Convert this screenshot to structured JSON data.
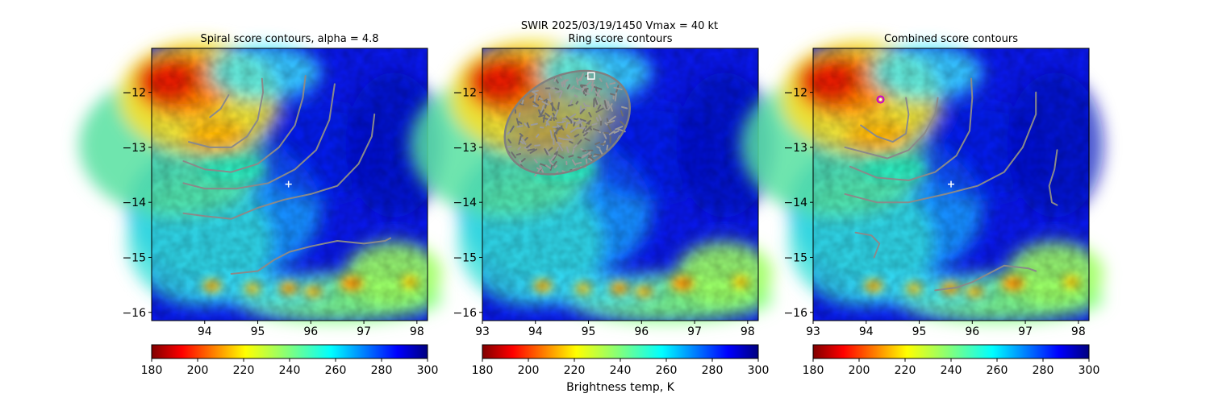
{
  "suptitle": {
    "line1": "SWIR  2025/03/19/1450    Vmax = 40 kt"
  },
  "chart_data": [
    {
      "type": "heatmap",
      "title": "Spiral score contours, alpha =  4.8",
      "xlim": [
        93.0,
        98.2
      ],
      "ylim": [
        -16.15,
        -11.2
      ],
      "xticks": [
        94,
        95,
        96,
        97,
        98
      ],
      "yticks": [
        -12,
        -13,
        -14,
        -15,
        -16
      ],
      "xtick_labels": [
        "94",
        "95",
        "96",
        "97",
        "98"
      ],
      "ytick_labels": [
        "−12",
        "−13",
        "−14",
        "−15",
        "−16"
      ],
      "colorbar": {
        "cmap": "jet_r",
        "range": [
          180,
          300
        ],
        "ticks": [
          "180",
          "200",
          "220",
          "240",
          "260",
          "280",
          "300"
        ],
        "label": ""
      },
      "markers": [
        {
          "kind": "plus",
          "lon": 95.58,
          "lat": -13.67,
          "color": "#ffffff"
        }
      ],
      "contours": [
        [
          [
            94.45,
            -12.05
          ],
          [
            94.3,
            -12.3
          ],
          [
            94.1,
            -12.45
          ]
        ],
        [
          [
            93.7,
            -12.9
          ],
          [
            94.1,
            -13.0
          ],
          [
            94.5,
            -13.0
          ],
          [
            94.8,
            -12.8
          ],
          [
            95.0,
            -12.5
          ],
          [
            95.1,
            -12.0
          ],
          [
            95.08,
            -11.75
          ]
        ],
        [
          [
            93.6,
            -13.25
          ],
          [
            94.0,
            -13.4
          ],
          [
            94.5,
            -13.45
          ],
          [
            95.0,
            -13.3
          ],
          [
            95.4,
            -13.0
          ],
          [
            95.7,
            -12.6
          ],
          [
            95.85,
            -12.1
          ],
          [
            95.9,
            -11.7
          ]
        ],
        [
          [
            93.6,
            -13.65
          ],
          [
            94.0,
            -13.75
          ],
          [
            94.6,
            -13.75
          ],
          [
            95.2,
            -13.65
          ],
          [
            95.7,
            -13.4
          ],
          [
            96.1,
            -13.05
          ],
          [
            96.35,
            -12.5
          ],
          [
            96.45,
            -11.85
          ]
        ],
        [
          [
            93.6,
            -14.2
          ],
          [
            94.0,
            -14.25
          ],
          [
            94.5,
            -14.3
          ],
          [
            95.0,
            -14.1
          ],
          [
            95.5,
            -13.95
          ],
          [
            96.0,
            -13.85
          ],
          [
            96.5,
            -13.7
          ],
          [
            96.9,
            -13.3
          ],
          [
            97.15,
            -12.8
          ],
          [
            97.2,
            -12.4
          ]
        ],
        [
          [
            94.5,
            -15.3
          ],
          [
            95.0,
            -15.25
          ],
          [
            95.3,
            -15.05
          ],
          [
            95.6,
            -14.9
          ],
          [
            96.0,
            -14.8
          ],
          [
            96.5,
            -14.7
          ],
          [
            97.0,
            -14.75
          ],
          [
            97.4,
            -14.7
          ],
          [
            97.5,
            -14.65
          ]
        ]
      ]
    },
    {
      "type": "heatmap",
      "title": "Ring score contours",
      "xlim": [
        93.0,
        98.2
      ],
      "ylim": [
        -16.15,
        -11.2
      ],
      "xticks": [
        93,
        94,
        95,
        96,
        97,
        98
      ],
      "yticks": [
        -12,
        -13,
        -14,
        -15,
        -16
      ],
      "xtick_labels": [
        "93",
        "94",
        "95",
        "96",
        "97",
        "98"
      ],
      "ytick_labels": [
        "−12",
        "−13",
        "−14",
        "−15",
        "−16"
      ],
      "colorbar": {
        "cmap": "jet_r",
        "range": [
          180,
          300
        ],
        "ticks": [
          "180",
          "200",
          "220",
          "240",
          "260",
          "280",
          "300"
        ],
        "label": "Brightness temp, K"
      },
      "markers": [
        {
          "kind": "square",
          "lon": 95.05,
          "lat": -11.7,
          "color": "#ffffff"
        }
      ],
      "ring_region": {
        "center": [
          94.6,
          -12.55
        ],
        "lon_radius": 1.25,
        "lat_radius": 0.85,
        "rotation_deg": -28
      }
    },
    {
      "type": "heatmap",
      "title": "Combined score contours",
      "xlim": [
        93.0,
        98.2
      ],
      "ylim": [
        -16.15,
        -11.2
      ],
      "xticks": [
        93,
        94,
        95,
        96,
        97,
        98
      ],
      "yticks": [
        -12,
        -13,
        -14,
        -15,
        -16
      ],
      "xtick_labels": [
        "93",
        "94",
        "95",
        "96",
        "97",
        "98"
      ],
      "ytick_labels": [
        "−12",
        "−13",
        "−14",
        "−15",
        "−16"
      ],
      "colorbar": {
        "cmap": "jet_r",
        "range": [
          180,
          300
        ],
        "ticks": [
          "180",
          "200",
          "220",
          "240",
          "260",
          "280",
          "300"
        ],
        "label": ""
      },
      "markers": [
        {
          "kind": "plus",
          "lon": 95.6,
          "lat": -13.67,
          "color": "#ffffff"
        },
        {
          "kind": "circle",
          "lon": 94.27,
          "lat": -12.13,
          "color": "#cc00cc"
        }
      ],
      "contours": [
        [
          [
            93.9,
            -12.6
          ],
          [
            94.2,
            -12.8
          ],
          [
            94.5,
            -12.9
          ],
          [
            94.75,
            -12.75
          ],
          [
            94.8,
            -12.4
          ],
          [
            94.75,
            -12.1
          ]
        ],
        [
          [
            93.6,
            -13.0
          ],
          [
            94.0,
            -13.1
          ],
          [
            94.4,
            -13.2
          ],
          [
            94.8,
            -13.05
          ],
          [
            95.1,
            -12.75
          ],
          [
            95.3,
            -12.4
          ],
          [
            95.35,
            -12.1
          ]
        ],
        [
          [
            93.7,
            -13.35
          ],
          [
            94.2,
            -13.55
          ],
          [
            94.8,
            -13.6
          ],
          [
            95.3,
            -13.45
          ],
          [
            95.7,
            -13.15
          ],
          [
            95.95,
            -12.7
          ],
          [
            96.0,
            -12.1
          ],
          [
            95.98,
            -11.75
          ]
        ],
        [
          [
            93.6,
            -13.85
          ],
          [
            94.2,
            -14.0
          ],
          [
            94.8,
            -14.0
          ],
          [
            95.5,
            -13.85
          ],
          [
            96.1,
            -13.7
          ],
          [
            96.6,
            -13.45
          ],
          [
            96.95,
            -13.0
          ],
          [
            97.2,
            -12.4
          ],
          [
            97.2,
            -12.0
          ]
        ],
        [
          [
            97.6,
            -13.05
          ],
          [
            97.55,
            -13.4
          ],
          [
            97.45,
            -13.7
          ],
          [
            97.5,
            -14.0
          ],
          [
            97.6,
            -14.05
          ]
        ],
        [
          [
            93.8,
            -14.55
          ],
          [
            94.1,
            -14.6
          ],
          [
            94.25,
            -14.75
          ],
          [
            94.15,
            -15.0
          ]
        ],
        [
          [
            95.3,
            -15.6
          ],
          [
            95.7,
            -15.55
          ],
          [
            96.0,
            -15.45
          ],
          [
            96.3,
            -15.3
          ],
          [
            96.6,
            -15.15
          ],
          [
            97.05,
            -15.2
          ],
          [
            97.2,
            -15.25
          ]
        ]
      ]
    }
  ]
}
